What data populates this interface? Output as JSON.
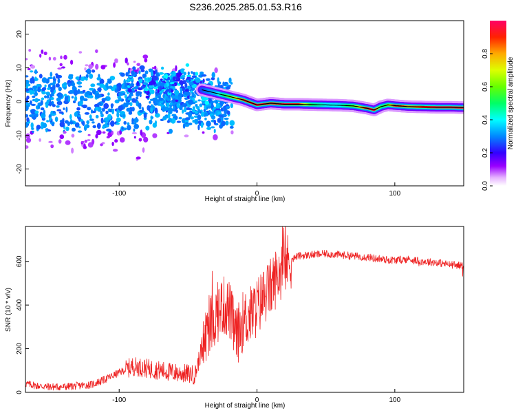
{
  "title": "S236.2025.285.01.53.R16",
  "chart_data": [
    {
      "type": "heatmap",
      "panel": "spectrogram",
      "xlabel": "Height of straight line (km)",
      "ylabel": "Frequency (Hz)",
      "xlim": [
        -168,
        150
      ],
      "ylim": [
        -25,
        24
      ],
      "xticks": [
        -100,
        0,
        100
      ],
      "yticks": [
        -20,
        -10,
        0,
        10,
        20
      ],
      "colorbar": {
        "label": "Normalized spectral amplitude",
        "range": [
          0,
          1
        ],
        "ticks": [
          0.0,
          0.2,
          0.4,
          0.6,
          0.8
        ],
        "colormap": [
          "#ffffff",
          "#e6b3ff",
          "#9900ff",
          "#3300ff",
          "#0066ff",
          "#00ffff",
          "#00ff66",
          "#33ff00",
          "#ccff00",
          "#ffcc00",
          "#ff6600",
          "#ff0000",
          "#ff0066"
        ]
      },
      "ridge": {
        "x": [
          -40,
          -30,
          -20,
          -10,
          0,
          10,
          20,
          30,
          40,
          50,
          60,
          70,
          80,
          85,
          90,
          95,
          100,
          110,
          120,
          130,
          140,
          150
        ],
        "frequency": [
          3.5,
          2.5,
          1.5,
          0.5,
          -1.0,
          -0.5,
          -0.8,
          -0.8,
          -0.9,
          -1.0,
          -1.1,
          -1.3,
          -2.0,
          -2.5,
          -1.5,
          -1.0,
          -1.2,
          -1.5,
          -1.6,
          -1.7,
          -1.7,
          -1.8
        ],
        "peak_amplitude": [
          0.25,
          0.35,
          0.6,
          0.9,
          0.95,
          0.9,
          0.95,
          0.9,
          0.5,
          0.4,
          0.4,
          0.6,
          0.95,
          0.95,
          0.5,
          0.6,
          0.95,
          0.8,
          0.9,
          0.95,
          0.95,
          0.95
        ]
      }
    },
    {
      "type": "line",
      "panel": "snr",
      "xlabel": "Height of straight line (km)",
      "ylabel": "SNR (10 * v/v)",
      "xlim": [
        -168,
        150
      ],
      "ylim": [
        0,
        760
      ],
      "xticks": [
        -100,
        0,
        100
      ],
      "yticks": [
        0,
        200,
        400,
        600
      ],
      "color": "#ee2222",
      "series": [
        {
          "name": "SNR",
          "x": [
            -168,
            -160,
            -150,
            -140,
            -130,
            -120,
            -110,
            -100,
            -90,
            -80,
            -70,
            -60,
            -50,
            -45,
            -40,
            -35,
            -30,
            -25,
            -20,
            -15,
            -10,
            -5,
            0,
            5,
            10,
            15,
            20,
            25,
            30,
            40,
            50,
            60,
            70,
            80,
            90,
            100,
            110,
            120,
            130,
            140,
            150
          ],
          "y": [
            40,
            30,
            25,
            25,
            30,
            35,
            60,
            90,
            120,
            110,
            100,
            90,
            85,
            80,
            200,
            300,
            350,
            400,
            380,
            250,
            330,
            350,
            390,
            440,
            480,
            540,
            580,
            610,
            625,
            630,
            635,
            630,
            625,
            620,
            610,
            605,
            610,
            600,
            595,
            585,
            580
          ]
        }
      ]
    }
  ]
}
